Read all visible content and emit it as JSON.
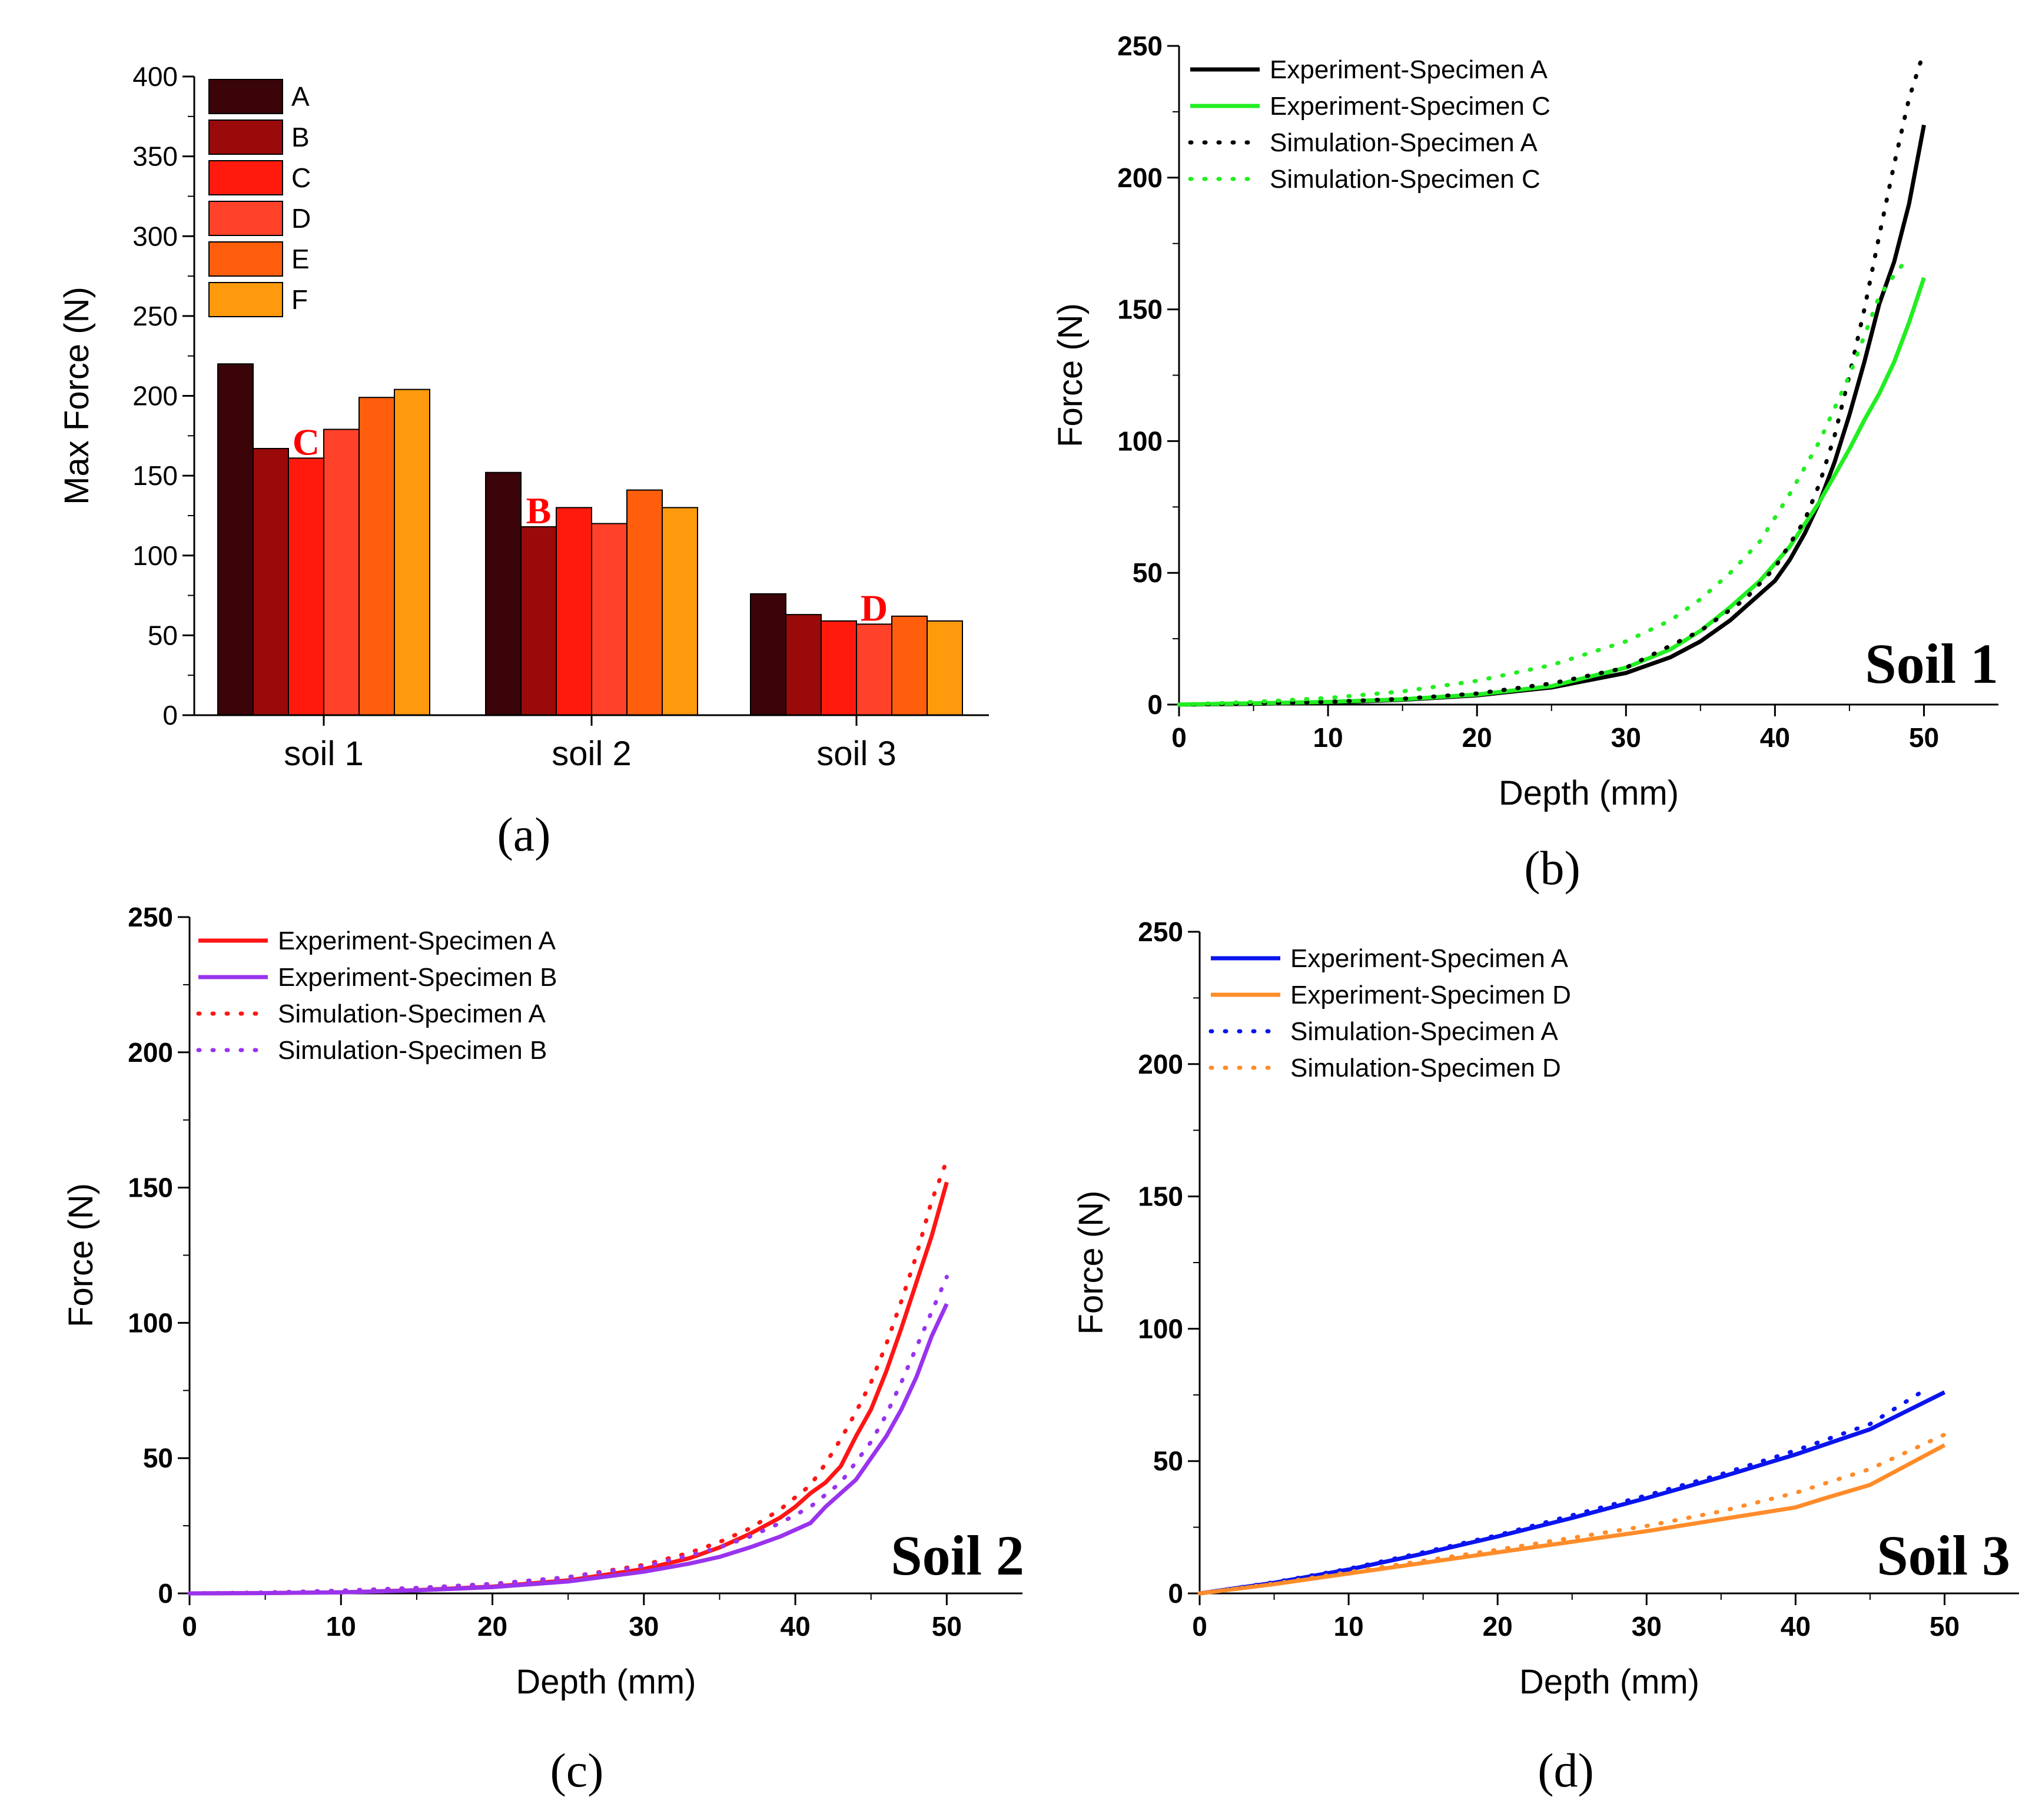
{
  "panels": {
    "a": {
      "caption": "(a)"
    },
    "b": {
      "caption": "(b)",
      "tag": "Soil 1"
    },
    "c": {
      "caption": "(c)",
      "tag": "Soil 2"
    },
    "d": {
      "caption": "(d)",
      "tag": "Soil 3"
    }
  },
  "chart_data": [
    {
      "type": "bar",
      "panel": "a",
      "categories": [
        "soil 1",
        "soil 2",
        "soil 3"
      ],
      "ylabel": "Max Force (N)",
      "xlabel": "",
      "ylim": [
        0,
        400
      ],
      "yticks": [
        0,
        50,
        100,
        150,
        200,
        250,
        300,
        350,
        400
      ],
      "legend_placement": "top-left",
      "series": [
        {
          "name": "A",
          "color": "#3a0408",
          "values": [
            220,
            152,
            76
          ]
        },
        {
          "name": "B",
          "color": "#9a0a0a",
          "values": [
            167,
            118,
            63
          ]
        },
        {
          "name": "C",
          "color": "#ff1a0d",
          "values": [
            161,
            130,
            59
          ]
        },
        {
          "name": "D",
          "color": "#ff4229",
          "values": [
            179,
            120,
            57
          ]
        },
        {
          "name": "E",
          "color": "#ff5f0d",
          "values": [
            199,
            141,
            62
          ]
        },
        {
          "name": "F",
          "color": "#ff9a0d",
          "values": [
            204,
            130,
            59
          ]
        }
      ],
      "annotations": [
        {
          "text": "C",
          "category": "soil 1",
          "series": "C"
        },
        {
          "text": "B",
          "category": "soil 2",
          "series": "B"
        },
        {
          "text": "D",
          "category": "soil 3",
          "series": "D"
        }
      ]
    },
    {
      "type": "line",
      "panel": "b",
      "xlabel": "Depth (mm)",
      "ylabel": "Force (N)",
      "xlim": [
        0,
        55
      ],
      "ylim": [
        0,
        250
      ],
      "xticks": [
        0,
        10,
        20,
        30,
        40,
        50
      ],
      "yticks": [
        0,
        50,
        100,
        150,
        200,
        250
      ],
      "legend_placement": "top-left",
      "series": [
        {
          "name": "Experiment-Specimen A",
          "color": "#000000",
          "style": "solid",
          "x": [
            0,
            5,
            10,
            15,
            20,
            25,
            30,
            33,
            35,
            37,
            38,
            40,
            41,
            42,
            43,
            44,
            45,
            46,
            47,
            48,
            49,
            50
          ],
          "y": [
            0,
            0.3,
            0.8,
            1.8,
            3.5,
            6.5,
            12,
            18,
            24,
            32,
            37,
            47,
            55,
            65,
            77,
            92,
            110,
            130,
            152,
            168,
            190,
            220
          ]
        },
        {
          "name": "Experiment-Specimen C",
          "color": "#22ee22",
          "style": "solid",
          "x": [
            0,
            5,
            10,
            15,
            20,
            25,
            30,
            33,
            35,
            37,
            39,
            41,
            43,
            45,
            46,
            47,
            48,
            49,
            50
          ],
          "y": [
            0,
            0.5,
            1,
            2,
            3.8,
            7,
            14,
            21,
            28,
            37,
            47,
            60,
            77,
            97,
            108,
            118,
            130,
            145,
            162
          ]
        },
        {
          "name": "Simulation-Specimen A",
          "color": "#000000",
          "style": "dotted",
          "x": [
            0,
            5,
            10,
            15,
            20,
            25,
            30,
            35,
            38,
            40,
            42,
            43,
            44,
            45,
            46,
            47,
            48,
            49,
            50
          ],
          "y": [
            0,
            0.4,
            1,
            2.2,
            4.2,
            8,
            14,
            28,
            40,
            52,
            70,
            84,
            102,
            125,
            150,
            178,
            205,
            230,
            248
          ]
        },
        {
          "name": "Simulation-Specimen C",
          "color": "#22ee22",
          "style": "dotted",
          "x": [
            0,
            5,
            10,
            15,
            20,
            25,
            30,
            33,
            35,
            37,
            39,
            41,
            43,
            45,
            46,
            47,
            48,
            49
          ],
          "y": [
            0,
            1,
            2.5,
            5,
            9,
            15,
            24,
            32,
            40,
            50,
            62,
            80,
            100,
            125,
            140,
            155,
            163,
            170
          ]
        }
      ]
    },
    {
      "type": "line",
      "panel": "c",
      "xlabel": "Depth (mm)",
      "ylabel": "Force (N)",
      "xlim": [
        0,
        55
      ],
      "ylim": [
        0,
        250
      ],
      "xticks": [
        0,
        10,
        20,
        30,
        40,
        50
      ],
      "yticks": [
        0,
        50,
        100,
        150,
        200,
        250
      ],
      "legend_placement": "top-left",
      "series": [
        {
          "name": "Experiment-Specimen A",
          "color": "#ff1515",
          "style": "solid",
          "x": [
            0,
            5,
            10,
            15,
            20,
            25,
            30,
            33,
            35,
            37,
            39,
            40,
            41,
            42,
            43,
            44,
            45,
            46,
            47,
            48,
            49,
            50
          ],
          "y": [
            0,
            0.1,
            0.4,
            1.2,
            2.5,
            4.8,
            9,
            13,
            17,
            22,
            28,
            32,
            37,
            41,
            47,
            58,
            68,
            82,
            98,
            115,
            132,
            152
          ]
        },
        {
          "name": "Experiment-Specimen B",
          "color": "#9933ee",
          "style": "solid",
          "x": [
            0,
            5,
            10,
            15,
            20,
            25,
            30,
            33,
            35,
            37,
            39,
            41,
            42,
            43,
            44,
            45,
            46,
            47,
            48,
            49,
            50
          ],
          "y": [
            0,
            0.1,
            0.4,
            1.1,
            2.3,
            4.4,
            8,
            11,
            13.5,
            17,
            21,
            26,
            32,
            37,
            42,
            50,
            58,
            68,
            80,
            95,
            107
          ]
        },
        {
          "name": "Simulation-Specimen A",
          "color": "#ff1515",
          "style": "dotted",
          "x": [
            0,
            5,
            10,
            15,
            20,
            25,
            30,
            33,
            35,
            37,
            39,
            41,
            42,
            43,
            44,
            45,
            46,
            47,
            48,
            49,
            50
          ],
          "y": [
            0,
            0.3,
            1,
            2,
            3.5,
            6,
            10.5,
            15,
            19,
            24,
            31,
            40,
            48,
            57,
            67,
            78,
            92,
            108,
            125,
            145,
            160
          ]
        },
        {
          "name": "Simulation-Specimen B",
          "color": "#9933ee",
          "style": "dotted",
          "x": [
            0,
            5,
            10,
            15,
            20,
            25,
            30,
            33,
            35,
            37,
            39,
            41,
            43,
            45,
            46,
            47,
            48,
            49,
            50
          ],
          "y": [
            0,
            0.3,
            1,
            2,
            3.5,
            6,
            10,
            14,
            17,
            21,
            26,
            32,
            41,
            56,
            66,
            78,
            91,
            104,
            117
          ]
        }
      ]
    },
    {
      "type": "line",
      "panel": "d",
      "xlabel": "Depth (mm)",
      "ylabel": "Force (N)",
      "xlim": [
        0,
        55
      ],
      "ylim": [
        0,
        250
      ],
      "xticks": [
        0,
        10,
        20,
        30,
        40,
        50
      ],
      "yticks": [
        0,
        50,
        100,
        150,
        200,
        250
      ],
      "legend_placement": "top-left",
      "series": [
        {
          "name": "Experiment-Specimen A",
          "color": "#0a14ee",
          "style": "solid",
          "x": [
            0,
            5,
            10,
            15,
            20,
            25,
            30,
            35,
            40,
            45,
            50
          ],
          "y": [
            0,
            4,
            9,
            15,
            21.5,
            28.5,
            36,
            44,
            52.5,
            62,
            76
          ]
        },
        {
          "name": "Experiment-Specimen D",
          "color": "#ff8c2a",
          "style": "solid",
          "x": [
            0,
            5,
            10,
            15,
            20,
            25,
            30,
            35,
            40,
            42,
            45,
            48,
            50
          ],
          "y": [
            0,
            3.5,
            7.5,
            11.5,
            15.5,
            19.5,
            23.5,
            28,
            32.5,
            36,
            41,
            50,
            56
          ]
        },
        {
          "name": "Simulation-Specimen A",
          "color": "#0a14ee",
          "style": "dotted",
          "x": [
            0,
            5,
            10,
            15,
            20,
            25,
            30,
            35,
            40,
            45,
            49
          ],
          "y": [
            0,
            4.2,
            9.3,
            15.5,
            22,
            29.5,
            37,
            45,
            54,
            64,
            78
          ]
        },
        {
          "name": "Simulation-Specimen D",
          "color": "#ff8c2a",
          "style": "dotted",
          "x": [
            0,
            5,
            10,
            15,
            20,
            25,
            30,
            35,
            40,
            45,
            50
          ],
          "y": [
            0,
            3.7,
            8,
            12.3,
            16.5,
            21,
            25.5,
            31,
            38,
            47,
            60
          ]
        }
      ]
    }
  ]
}
